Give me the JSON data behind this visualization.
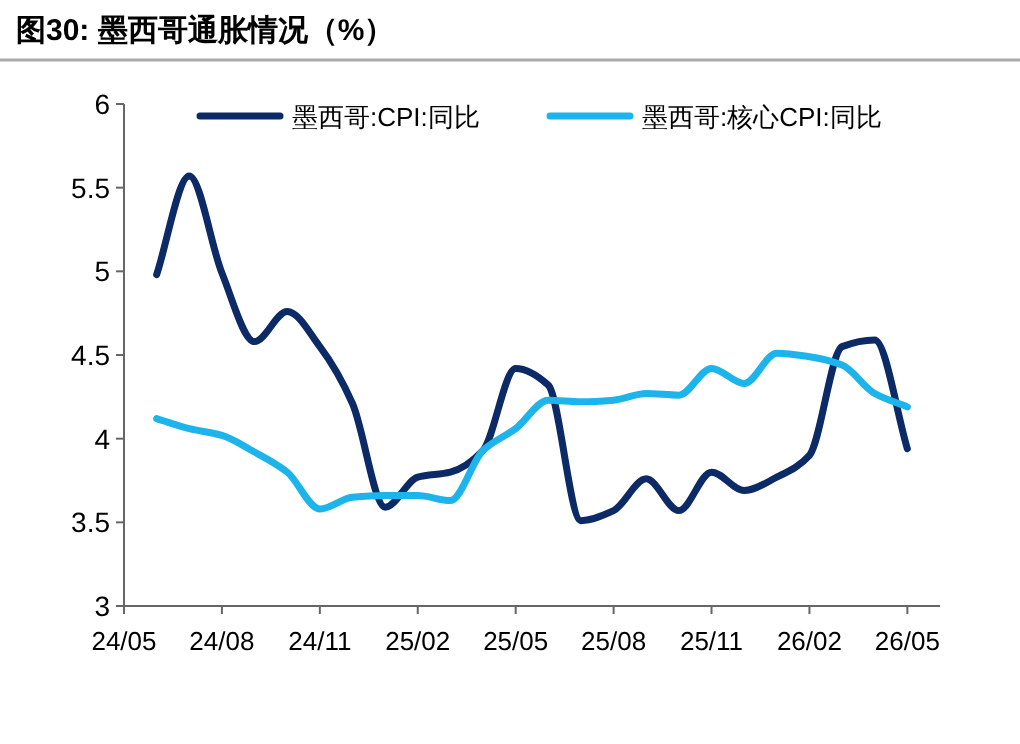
{
  "chart_data": {
    "type": "line",
    "title": "图30:  墨西哥通胀情况（%）",
    "categories": [
      "24/05",
      null,
      null,
      "24/08",
      null,
      null,
      "24/11",
      null,
      null,
      "25/02",
      null,
      null,
      "25/05",
      null,
      null,
      "25/08",
      null,
      null,
      "25/11",
      null,
      null,
      "26/02",
      null,
      null,
      "26/05"
    ],
    "series": [
      {
        "name": "墨西哥:CPI:同比",
        "color": "#0b2a66",
        "values": [
          null,
          4.98,
          5.57,
          4.99,
          4.58,
          4.76,
          4.55,
          4.21,
          3.59,
          3.77,
          3.8,
          3.93,
          4.42,
          4.32,
          3.51,
          3.57,
          3.76,
          3.57,
          3.8,
          3.69,
          3.77,
          3.9,
          4.55,
          4.59,
          3.94
        ]
      },
      {
        "name": "墨西哥:核心CPI:同比",
        "color": "#1cb4ea",
        "values": [
          null,
          4.12,
          4.06,
          4.02,
          3.92,
          3.8,
          3.58,
          3.65,
          3.66,
          3.66,
          3.63,
          3.93,
          4.06,
          4.23,
          4.22,
          4.23,
          4.27,
          4.26,
          4.42,
          4.33,
          4.51,
          4.49,
          4.44,
          4.27,
          4.19
        ]
      }
    ],
    "ylim": [
      3,
      6
    ],
    "yticks": [
      3,
      3.5,
      4,
      4.5,
      5,
      5.5,
      6
    ],
    "legend": "top",
    "grid": false,
    "marker": "none",
    "line_style": "solid"
  }
}
